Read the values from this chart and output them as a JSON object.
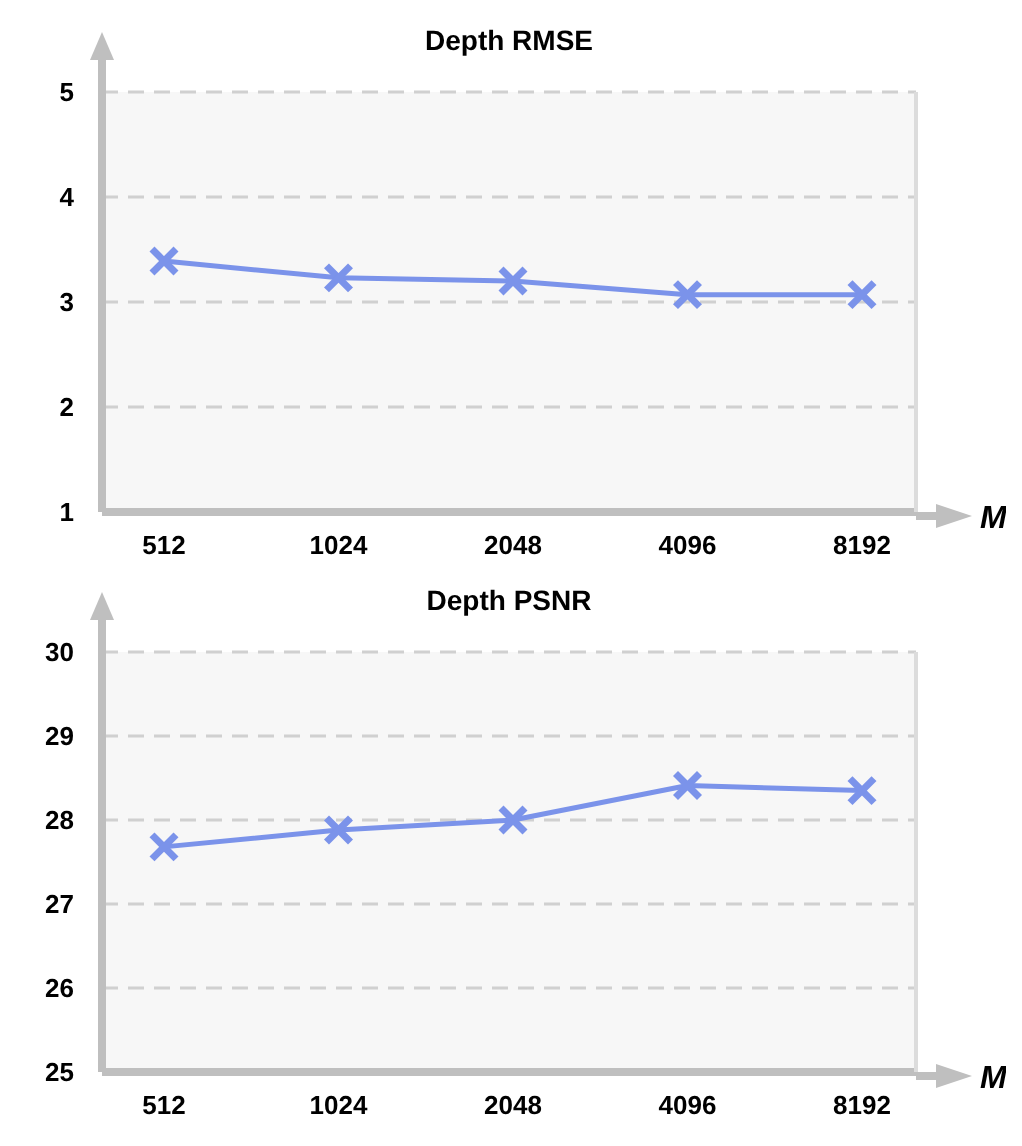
{
  "chart_data": [
    {
      "type": "line",
      "title": "Depth RMSE",
      "xlabel": "M",
      "categories": [
        "512",
        "1024",
        "2048",
        "4096",
        "8192"
      ],
      "series": [
        {
          "color": "#7b93ea",
          "values": [
            3.39,
            3.23,
            3.2,
            3.07,
            3.07
          ]
        }
      ],
      "ylim": [
        1,
        5
      ],
      "yticks": [
        1,
        2,
        3,
        4,
        5
      ],
      "grid": "y",
      "marker": "cross",
      "line_style": "solid",
      "legend": false
    },
    {
      "type": "line",
      "title": "Depth PSNR",
      "xlabel": "M",
      "categories": [
        "512",
        "1024",
        "2048",
        "4096",
        "8192"
      ],
      "series": [
        {
          "color": "#7b93ea",
          "values": [
            27.68,
            27.88,
            28.0,
            28.41,
            28.35
          ]
        }
      ],
      "ylim": [
        25,
        30
      ],
      "yticks": [
        25,
        26,
        27,
        28,
        29,
        30
      ],
      "grid": "y",
      "marker": "cross",
      "line_style": "solid",
      "legend": false
    }
  ]
}
